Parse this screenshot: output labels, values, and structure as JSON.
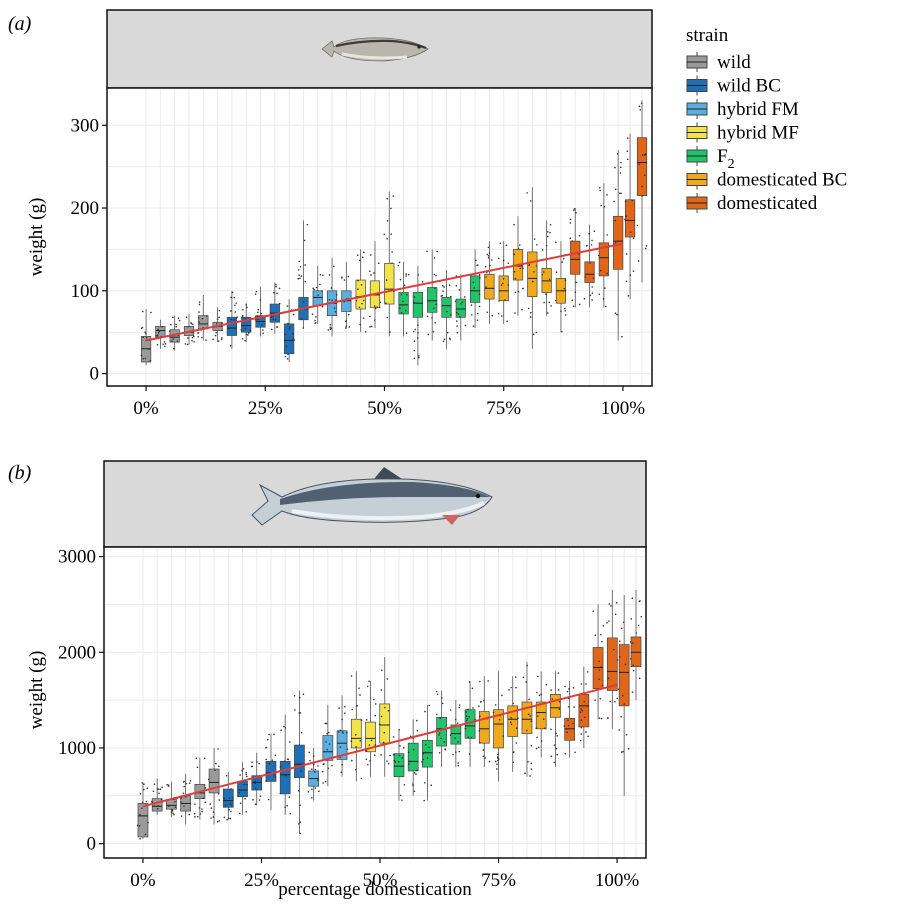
{
  "colors": {
    "wild": "#9a9a9a",
    "wild BC": "#1f6fb5",
    "hybrid FM": "#5aaee0",
    "hybrid MF": "#f2e34a",
    "F2": "#22c36a",
    "domesticated BC": "#f0a81c",
    "domesticated": "#e0661a",
    "trend": "#e23b3b",
    "strip": "#d9d9d9",
    "grid": "#ebebeb"
  },
  "legend": {
    "title": "strain",
    "items": [
      {
        "key": "wild",
        "label": "wild"
      },
      {
        "key": "wild BC",
        "label": "wild BC"
      },
      {
        "key": "hybrid FM",
        "label": "hybrid FM"
      },
      {
        "key": "hybrid MF",
        "label": "hybrid MF"
      },
      {
        "key": "F2",
        "label": "F",
        "sub": "2"
      },
      {
        "key": "domesticated BC",
        "label": "domesticated BC"
      },
      {
        "key": "domesticated",
        "label": "domesticated"
      }
    ]
  },
  "xlabel": "percentage domestication",
  "chart_data": [
    {
      "type": "box",
      "panel_label": "(a)",
      "ylabel": "weight (g)",
      "xlim": [
        -4,
        104
      ],
      "ylim": [
        -15,
        345
      ],
      "x_ticks": [
        0,
        25,
        50,
        75,
        100
      ],
      "x_tick_labels": [
        "0%",
        "25%",
        "50%",
        "75%",
        "100%"
      ],
      "y_ticks": [
        0,
        100,
        200,
        300
      ],
      "y_tick_labels": [
        "0",
        "100",
        "200",
        "300"
      ],
      "trend": {
        "x": [
          0,
          100
        ],
        "y": [
          40,
          157
        ]
      },
      "boxes": [
        {
          "x": 0,
          "strain": "wild",
          "lo": 10,
          "q1": 14,
          "med": 30,
          "q3": 45,
          "hi": 78
        },
        {
          "x": 3,
          "strain": "wild",
          "lo": 30,
          "q1": 44,
          "med": 52,
          "q3": 57,
          "hi": 65
        },
        {
          "x": 6,
          "strain": "wild",
          "lo": 28,
          "q1": 38,
          "med": 44,
          "q3": 53,
          "hi": 70
        },
        {
          "x": 9,
          "strain": "wild",
          "lo": 35,
          "q1": 46,
          "med": 50,
          "q3": 57,
          "hi": 72
        },
        {
          "x": 12,
          "strain": "wild",
          "lo": 40,
          "q1": 54,
          "med": 60,
          "q3": 70,
          "hi": 95
        },
        {
          "x": 15,
          "strain": "wild",
          "lo": 38,
          "q1": 52,
          "med": 57,
          "q3": 62,
          "hi": 80
        },
        {
          "x": 18,
          "strain": "wild BC",
          "lo": 30,
          "q1": 46,
          "med": 55,
          "q3": 68,
          "hi": 100
        },
        {
          "x": 21,
          "strain": "wild BC",
          "lo": 38,
          "q1": 50,
          "med": 58,
          "q3": 68,
          "hi": 85
        },
        {
          "x": 24,
          "strain": "wild BC",
          "lo": 45,
          "q1": 56,
          "med": 63,
          "q3": 70,
          "hi": 105
        },
        {
          "x": 27,
          "strain": "wild BC",
          "lo": 48,
          "q1": 62,
          "med": 73,
          "q3": 84,
          "hi": 110
        },
        {
          "x": 30,
          "strain": "wild BC",
          "lo": 14,
          "q1": 24,
          "med": 40,
          "q3": 60,
          "hi": 90
        },
        {
          "x": 33,
          "strain": "wild BC",
          "lo": 55,
          "q1": 65,
          "med": 78,
          "q3": 92,
          "hi": 185
        },
        {
          "x": 36,
          "strain": "hybrid FM",
          "lo": 60,
          "q1": 82,
          "med": 92,
          "q3": 100,
          "hi": 130
        },
        {
          "x": 39,
          "strain": "hybrid FM",
          "lo": 45,
          "q1": 70,
          "med": 85,
          "q3": 100,
          "hi": 140
        },
        {
          "x": 42,
          "strain": "hybrid FM",
          "lo": 55,
          "q1": 75,
          "med": 88,
          "q3": 100,
          "hi": 135
        },
        {
          "x": 45,
          "strain": "hybrid MF",
          "lo": 50,
          "q1": 78,
          "med": 93,
          "q3": 113,
          "hi": 150
        },
        {
          "x": 48,
          "strain": "hybrid MF",
          "lo": 55,
          "q1": 80,
          "med": 95,
          "q3": 112,
          "hi": 160
        },
        {
          "x": 51,
          "strain": "hybrid MF",
          "lo": 45,
          "q1": 84,
          "med": 102,
          "q3": 133,
          "hi": 220
        },
        {
          "x": 54,
          "strain": "F2",
          "lo": 45,
          "q1": 72,
          "med": 83,
          "q3": 98,
          "hi": 135
        },
        {
          "x": 57,
          "strain": "F2",
          "lo": 10,
          "q1": 68,
          "med": 85,
          "q3": 98,
          "hi": 130
        },
        {
          "x": 60,
          "strain": "F2",
          "lo": 40,
          "q1": 74,
          "med": 88,
          "q3": 104,
          "hi": 150
        },
        {
          "x": 63,
          "strain": "F2",
          "lo": 30,
          "q1": 68,
          "med": 82,
          "q3": 92,
          "hi": 125
        },
        {
          "x": 66,
          "strain": "F2",
          "lo": 40,
          "q1": 68,
          "med": 78,
          "q3": 90,
          "hi": 120
        },
        {
          "x": 69,
          "strain": "F2",
          "lo": 55,
          "q1": 86,
          "med": 100,
          "q3": 118,
          "hi": 150
        },
        {
          "x": 72,
          "strain": "domesticated BC",
          "lo": 60,
          "q1": 90,
          "med": 103,
          "q3": 120,
          "hi": 160
        },
        {
          "x": 75,
          "strain": "domesticated BC",
          "lo": 60,
          "q1": 88,
          "med": 100,
          "q3": 118,
          "hi": 160
        },
        {
          "x": 78,
          "strain": "domesticated BC",
          "lo": 70,
          "q1": 113,
          "med": 130,
          "q3": 150,
          "hi": 190
        },
        {
          "x": 81,
          "strain": "domesticated BC",
          "lo": 30,
          "q1": 93,
          "med": 115,
          "q3": 147,
          "hi": 225
        },
        {
          "x": 84,
          "strain": "domesticated BC",
          "lo": 70,
          "q1": 98,
          "med": 112,
          "q3": 127,
          "hi": 185
        },
        {
          "x": 87,
          "strain": "domesticated BC",
          "lo": 50,
          "q1": 85,
          "med": 100,
          "q3": 115,
          "hi": 160
        },
        {
          "x": 90,
          "strain": "domesticated",
          "lo": 80,
          "q1": 120,
          "med": 138,
          "q3": 160,
          "hi": 200
        },
        {
          "x": 93,
          "strain": "domesticated",
          "lo": 80,
          "q1": 110,
          "med": 120,
          "q3": 135,
          "hi": 180
        },
        {
          "x": 96,
          "strain": "domesticated",
          "lo": 80,
          "q1": 118,
          "med": 140,
          "q3": 158,
          "hi": 230
        },
        {
          "x": 99,
          "strain": "domesticated",
          "lo": 40,
          "q1": 126,
          "med": 160,
          "q3": 190,
          "hi": 270
        },
        {
          "x": 101.5,
          "strain": "domesticated",
          "lo": 90,
          "q1": 165,
          "med": 185,
          "q3": 210,
          "hi": 290
        },
        {
          "x": 104,
          "strain": "domesticated",
          "lo": 110,
          "q1": 215,
          "med": 255,
          "q3": 285,
          "hi": 330
        }
      ]
    },
    {
      "type": "box",
      "panel_label": "(b)",
      "ylabel": "weight (g)",
      "xlim": [
        -4,
        104
      ],
      "ylim": [
        -150,
        3100
      ],
      "x_ticks": [
        0,
        25,
        50,
        75,
        100
      ],
      "x_tick_labels": [
        "0%",
        "25%",
        "50%",
        "75%",
        "100%"
      ],
      "y_ticks": [
        0,
        1000,
        2000,
        3000
      ],
      "y_tick_labels": [
        "0",
        "1000",
        "2000",
        "3000"
      ],
      "trend": {
        "x": [
          0,
          100
        ],
        "y": [
          390,
          1660
        ]
      },
      "boxes": [
        {
          "x": 0,
          "strain": "wild",
          "lo": 50,
          "q1": 70,
          "med": 290,
          "q3": 420,
          "hi": 640
        },
        {
          "x": 3,
          "strain": "wild",
          "lo": 300,
          "q1": 340,
          "med": 390,
          "q3": 470,
          "hi": 680
        },
        {
          "x": 6,
          "strain": "wild",
          "lo": 280,
          "q1": 360,
          "med": 400,
          "q3": 460,
          "hi": 650
        },
        {
          "x": 9,
          "strain": "wild",
          "lo": 200,
          "q1": 340,
          "med": 420,
          "q3": 500,
          "hi": 730
        },
        {
          "x": 12,
          "strain": "wild",
          "lo": 250,
          "q1": 470,
          "med": 530,
          "q3": 620,
          "hi": 900
        },
        {
          "x": 15,
          "strain": "wild",
          "lo": 200,
          "q1": 530,
          "med": 640,
          "q3": 780,
          "hi": 1000
        },
        {
          "x": 18,
          "strain": "wild BC",
          "lo": 250,
          "q1": 380,
          "med": 450,
          "q3": 570,
          "hi": 750
        },
        {
          "x": 21,
          "strain": "wild BC",
          "lo": 300,
          "q1": 490,
          "med": 560,
          "q3": 650,
          "hi": 850
        },
        {
          "x": 24,
          "strain": "wild BC",
          "lo": 400,
          "q1": 560,
          "med": 640,
          "q3": 710,
          "hi": 950
        },
        {
          "x": 27,
          "strain": "wild BC",
          "lo": 350,
          "q1": 650,
          "med": 740,
          "q3": 860,
          "hi": 1150
        },
        {
          "x": 30,
          "strain": "wild BC",
          "lo": 300,
          "q1": 520,
          "med": 720,
          "q3": 860,
          "hi": 1350
        },
        {
          "x": 33,
          "strain": "wild BC",
          "lo": 100,
          "q1": 690,
          "med": 830,
          "q3": 1030,
          "hi": 1600
        },
        {
          "x": 36,
          "strain": "hybrid FM",
          "lo": 450,
          "q1": 600,
          "med": 680,
          "q3": 760,
          "hi": 1000
        },
        {
          "x": 39,
          "strain": "hybrid FM",
          "lo": 600,
          "q1": 870,
          "med": 960,
          "q3": 1130,
          "hi": 1450
        },
        {
          "x": 42,
          "strain": "hybrid FM",
          "lo": 700,
          "q1": 880,
          "med": 1050,
          "q3": 1180,
          "hi": 1550
        },
        {
          "x": 45,
          "strain": "hybrid MF",
          "lo": 650,
          "q1": 1000,
          "med": 1100,
          "q3": 1300,
          "hi": 1800
        },
        {
          "x": 48,
          "strain": "hybrid MF",
          "lo": 700,
          "q1": 960,
          "med": 1100,
          "q3": 1270,
          "hi": 1700
        },
        {
          "x": 51,
          "strain": "hybrid MF",
          "lo": 700,
          "q1": 1050,
          "med": 1240,
          "q3": 1460,
          "hi": 1950
        },
        {
          "x": 54,
          "strain": "F2",
          "lo": 450,
          "q1": 700,
          "med": 810,
          "q3": 940,
          "hi": 1200
        },
        {
          "x": 57,
          "strain": "F2",
          "lo": 500,
          "q1": 760,
          "med": 860,
          "q3": 1050,
          "hi": 1300
        },
        {
          "x": 60,
          "strain": "F2",
          "lo": 450,
          "q1": 800,
          "med": 950,
          "q3": 1080,
          "hi": 1450
        },
        {
          "x": 63,
          "strain": "F2",
          "lo": 800,
          "q1": 1020,
          "med": 1200,
          "q3": 1320,
          "hi": 1600
        },
        {
          "x": 66,
          "strain": "F2",
          "lo": 800,
          "q1": 1040,
          "med": 1150,
          "q3": 1240,
          "hi": 1500
        },
        {
          "x": 69,
          "strain": "F2",
          "lo": 800,
          "q1": 1100,
          "med": 1230,
          "q3": 1400,
          "hi": 1700
        },
        {
          "x": 72,
          "strain": "domesticated BC",
          "lo": 800,
          "q1": 1050,
          "med": 1200,
          "q3": 1380,
          "hi": 1750
        },
        {
          "x": 75,
          "strain": "domesticated BC",
          "lo": 650,
          "q1": 1000,
          "med": 1250,
          "q3": 1400,
          "hi": 1800
        },
        {
          "x": 78,
          "strain": "domesticated BC",
          "lo": 750,
          "q1": 1120,
          "med": 1300,
          "q3": 1440,
          "hi": 1750
        },
        {
          "x": 81,
          "strain": "domesticated BC",
          "lo": 700,
          "q1": 1150,
          "med": 1300,
          "q3": 1480,
          "hi": 1900
        },
        {
          "x": 84,
          "strain": "domesticated BC",
          "lo": 900,
          "q1": 1200,
          "med": 1370,
          "q3": 1480,
          "hi": 1800
        },
        {
          "x": 87,
          "strain": "domesticated BC",
          "lo": 800,
          "q1": 1320,
          "med": 1420,
          "q3": 1560,
          "hi": 1800
        },
        {
          "x": 90,
          "strain": "domesticated",
          "lo": 900,
          "q1": 1080,
          "med": 1200,
          "q3": 1310,
          "hi": 1700
        },
        {
          "x": 93,
          "strain": "domesticated",
          "lo": 1000,
          "q1": 1220,
          "med": 1440,
          "q3": 1560,
          "hi": 1850
        },
        {
          "x": 96,
          "strain": "domesticated",
          "lo": 1300,
          "q1": 1620,
          "med": 1840,
          "q3": 2050,
          "hi": 2500
        },
        {
          "x": 99,
          "strain": "domesticated",
          "lo": 1200,
          "q1": 1600,
          "med": 1800,
          "q3": 2150,
          "hi": 2650
        },
        {
          "x": 101.5,
          "strain": "domesticated",
          "lo": 500,
          "q1": 1440,
          "med": 1790,
          "q3": 2080,
          "hi": 2600
        },
        {
          "x": 104,
          "strain": "domesticated",
          "lo": 1500,
          "q1": 1850,
          "med": 2000,
          "q3": 2160,
          "hi": 2650
        }
      ]
    }
  ]
}
